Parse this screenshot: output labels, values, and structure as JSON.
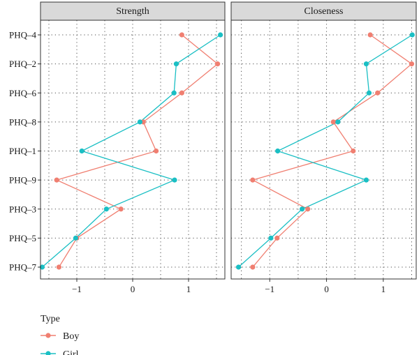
{
  "chart_data": {
    "type": "line",
    "panels": [
      {
        "title": "Strength",
        "xlim": [
          -1.65,
          1.65
        ],
        "series": [
          {
            "name": "Boy",
            "values": [
              0.88,
              1.52,
              0.88,
              0.19,
              0.42,
              -1.36,
              -0.21,
              -1.0,
              -1.32
            ]
          },
          {
            "name": "Girl",
            "values": [
              1.57,
              0.78,
              0.74,
              0.13,
              -0.91,
              0.75,
              -0.47,
              -1.02,
              -1.62
            ]
          }
        ]
      },
      {
        "title": "Closeness",
        "xlim": [
          -1.68,
          1.58
        ],
        "series": [
          {
            "name": "Boy",
            "values": [
              0.77,
              1.5,
              0.9,
              0.12,
              0.47,
              -1.3,
              -0.33,
              -0.87,
              -1.3
            ]
          },
          {
            "name": "Girl",
            "values": [
              1.51,
              0.7,
              0.75,
              0.2,
              -0.86,
              0.7,
              -0.43,
              -0.98,
              -1.55
            ]
          }
        ]
      }
    ],
    "categories": [
      "PHQ–4",
      "PHQ–2",
      "PHQ–6",
      "PHQ–8",
      "PHQ–1",
      "PHQ–9",
      "PHQ–3",
      "PHQ–5",
      "PHQ–7"
    ],
    "x_ticks": [
      -1,
      0,
      1
    ],
    "x_tick_labels": [
      "−1",
      "0",
      "1"
    ],
    "grid": true,
    "legend": {
      "position": "bottom-left",
      "title": "Type",
      "entries": [
        {
          "name": "Boy",
          "color": "#F07F71"
        },
        {
          "name": "Girl",
          "color": "#1ABFC4"
        }
      ]
    }
  }
}
